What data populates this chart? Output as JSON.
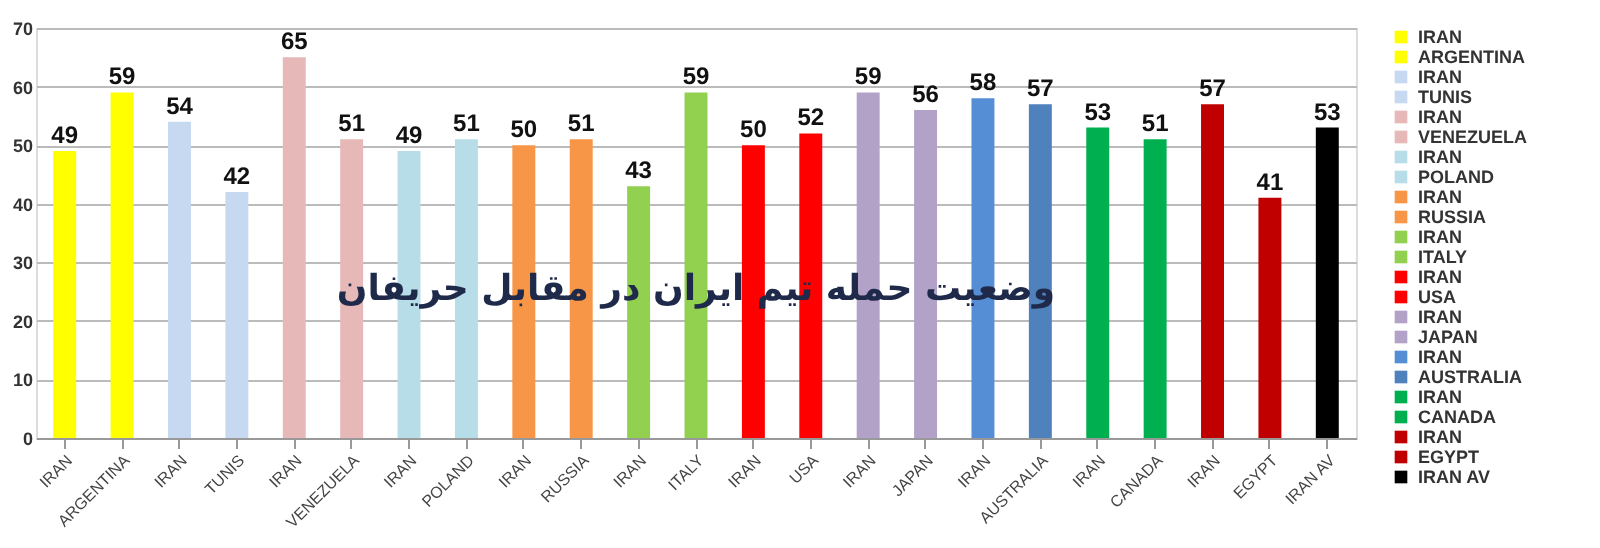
{
  "chart_data": {
    "type": "bar",
    "title": "وضعیت حمله تیم ایران در مقابل حریفان",
    "categories": [
      "IRAN",
      "ARGENTINA",
      "IRAN",
      "TUNIS",
      "IRAN",
      "VENEZUELA",
      "IRAN",
      "POLAND",
      "IRAN",
      "RUSSIA",
      "IRAN",
      "ITALY",
      "IRAN",
      "USA",
      "IRAN",
      "JAPAN",
      "IRAN",
      "AUSTRALIA",
      "IRAN",
      "CANADA",
      "IRAN",
      "EGYPT",
      "IRAN AV"
    ],
    "series": [
      {
        "name": "IRAN",
        "color": "#ffff00",
        "values": [
          49,
          null,
          null,
          null,
          null,
          null,
          null,
          null,
          null,
          null,
          null,
          null,
          null,
          null,
          null,
          null,
          null,
          null,
          null,
          null,
          null,
          null,
          null
        ]
      },
      {
        "name": "ARGENTINA",
        "color": "#ffff00",
        "values": [
          null,
          59,
          null,
          null,
          null,
          null,
          null,
          null,
          null,
          null,
          null,
          null,
          null,
          null,
          null,
          null,
          null,
          null,
          null,
          null,
          null,
          null,
          null
        ]
      },
      {
        "name": "IRAN",
        "color": "#c6d9f1",
        "values": [
          null,
          null,
          54,
          null,
          null,
          null,
          null,
          null,
          null,
          null,
          null,
          null,
          null,
          null,
          null,
          null,
          null,
          null,
          null,
          null,
          null,
          null,
          null
        ]
      },
      {
        "name": "TUNIS",
        "color": "#c6d9f1",
        "values": [
          null,
          null,
          null,
          42,
          null,
          null,
          null,
          null,
          null,
          null,
          null,
          null,
          null,
          null,
          null,
          null,
          null,
          null,
          null,
          null,
          null,
          null,
          null
        ]
      },
      {
        "name": "IRAN",
        "color": "#e6b9b8",
        "values": [
          null,
          null,
          null,
          null,
          65,
          null,
          null,
          null,
          null,
          null,
          null,
          null,
          null,
          null,
          null,
          null,
          null,
          null,
          null,
          null,
          null,
          null,
          null
        ]
      },
      {
        "name": "VENEZUELA",
        "color": "#e6b9b8",
        "values": [
          null,
          null,
          null,
          null,
          null,
          51,
          null,
          null,
          null,
          null,
          null,
          null,
          null,
          null,
          null,
          null,
          null,
          null,
          null,
          null,
          null,
          null,
          null
        ]
      },
      {
        "name": "IRAN",
        "color": "#b7dee8",
        "values": [
          null,
          null,
          null,
          null,
          null,
          null,
          49,
          null,
          null,
          null,
          null,
          null,
          null,
          null,
          null,
          null,
          null,
          null,
          null,
          null,
          null,
          null,
          null
        ]
      },
      {
        "name": "POLAND",
        "color": "#b7dee8",
        "values": [
          null,
          null,
          null,
          null,
          null,
          null,
          null,
          51,
          null,
          null,
          null,
          null,
          null,
          null,
          null,
          null,
          null,
          null,
          null,
          null,
          null,
          null,
          null
        ]
      },
      {
        "name": "IRAN",
        "color": "#f79646",
        "values": [
          null,
          null,
          null,
          null,
          null,
          null,
          null,
          null,
          50,
          null,
          null,
          null,
          null,
          null,
          null,
          null,
          null,
          null,
          null,
          null,
          null,
          null,
          null
        ]
      },
      {
        "name": "RUSSIA",
        "color": "#f79646",
        "values": [
          null,
          null,
          null,
          null,
          null,
          null,
          null,
          null,
          null,
          51,
          null,
          null,
          null,
          null,
          null,
          null,
          null,
          null,
          null,
          null,
          null,
          null,
          null
        ]
      },
      {
        "name": "IRAN",
        "color": "#92d050",
        "values": [
          null,
          null,
          null,
          null,
          null,
          null,
          null,
          null,
          null,
          null,
          43,
          null,
          null,
          null,
          null,
          null,
          null,
          null,
          null,
          null,
          null,
          null,
          null
        ]
      },
      {
        "name": "ITALY",
        "color": "#92d050",
        "values": [
          null,
          null,
          null,
          null,
          null,
          null,
          null,
          null,
          null,
          null,
          null,
          59,
          null,
          null,
          null,
          null,
          null,
          null,
          null,
          null,
          null,
          null,
          null
        ]
      },
      {
        "name": "IRAN",
        "color": "#ff0000",
        "values": [
          null,
          null,
          null,
          null,
          null,
          null,
          null,
          null,
          null,
          null,
          null,
          null,
          50,
          null,
          null,
          null,
          null,
          null,
          null,
          null,
          null,
          null,
          null
        ]
      },
      {
        "name": "USA",
        "color": "#ff0000",
        "values": [
          null,
          null,
          null,
          null,
          null,
          null,
          null,
          null,
          null,
          null,
          null,
          null,
          null,
          52,
          null,
          null,
          null,
          null,
          null,
          null,
          null,
          null,
          null
        ]
      },
      {
        "name": "IRAN",
        "color": "#b3a2c7",
        "values": [
          null,
          null,
          null,
          null,
          null,
          null,
          null,
          null,
          null,
          null,
          null,
          null,
          null,
          null,
          59,
          null,
          null,
          null,
          null,
          null,
          null,
          null,
          null
        ]
      },
      {
        "name": "JAPAN",
        "color": "#b3a2c7",
        "values": [
          null,
          null,
          null,
          null,
          null,
          null,
          null,
          null,
          null,
          null,
          null,
          null,
          null,
          null,
          null,
          56,
          null,
          null,
          null,
          null,
          null,
          null,
          null
        ]
      },
      {
        "name": "IRAN",
        "color": "#558ed5",
        "values": [
          null,
          null,
          null,
          null,
          null,
          null,
          null,
          null,
          null,
          null,
          null,
          null,
          null,
          null,
          null,
          null,
          58,
          null,
          null,
          null,
          null,
          null,
          null
        ]
      },
      {
        "name": "AUSTRALIA",
        "color": "#4f81bd",
        "values": [
          null,
          null,
          null,
          null,
          null,
          null,
          null,
          null,
          null,
          null,
          null,
          null,
          null,
          null,
          null,
          null,
          null,
          57,
          null,
          null,
          null,
          null,
          null
        ]
      },
      {
        "name": "IRAN",
        "color": "#00b050",
        "values": [
          null,
          null,
          null,
          null,
          null,
          null,
          null,
          null,
          null,
          null,
          null,
          null,
          null,
          null,
          null,
          null,
          null,
          null,
          53,
          null,
          null,
          null,
          null
        ]
      },
      {
        "name": "CANADA",
        "color": "#00b050",
        "values": [
          null,
          null,
          null,
          null,
          null,
          null,
          null,
          null,
          null,
          null,
          null,
          null,
          null,
          null,
          null,
          null,
          null,
          null,
          null,
          51,
          null,
          null,
          null
        ]
      },
      {
        "name": "IRAN",
        "color": "#c00000",
        "values": [
          null,
          null,
          null,
          null,
          null,
          null,
          null,
          null,
          null,
          null,
          null,
          null,
          null,
          null,
          null,
          null,
          null,
          null,
          null,
          null,
          57,
          null,
          null
        ]
      },
      {
        "name": "EGYPT",
        "color": "#c00000",
        "values": [
          null,
          null,
          null,
          null,
          null,
          null,
          null,
          null,
          null,
          null,
          null,
          null,
          null,
          null,
          null,
          null,
          null,
          null,
          null,
          null,
          null,
          41,
          null
        ]
      },
      {
        "name": "IRAN AV",
        "color": "#000000",
        "values": [
          null,
          null,
          null,
          null,
          null,
          null,
          null,
          null,
          null,
          null,
          null,
          null,
          null,
          null,
          null,
          null,
          null,
          null,
          null,
          null,
          null,
          null,
          53
        ]
      }
    ],
    "data_labels": true,
    "ylim": [
      0,
      70
    ],
    "yticks": [
      0,
      10,
      20,
      30,
      40,
      50,
      60,
      70
    ],
    "grid": "y",
    "legend": "right"
  }
}
